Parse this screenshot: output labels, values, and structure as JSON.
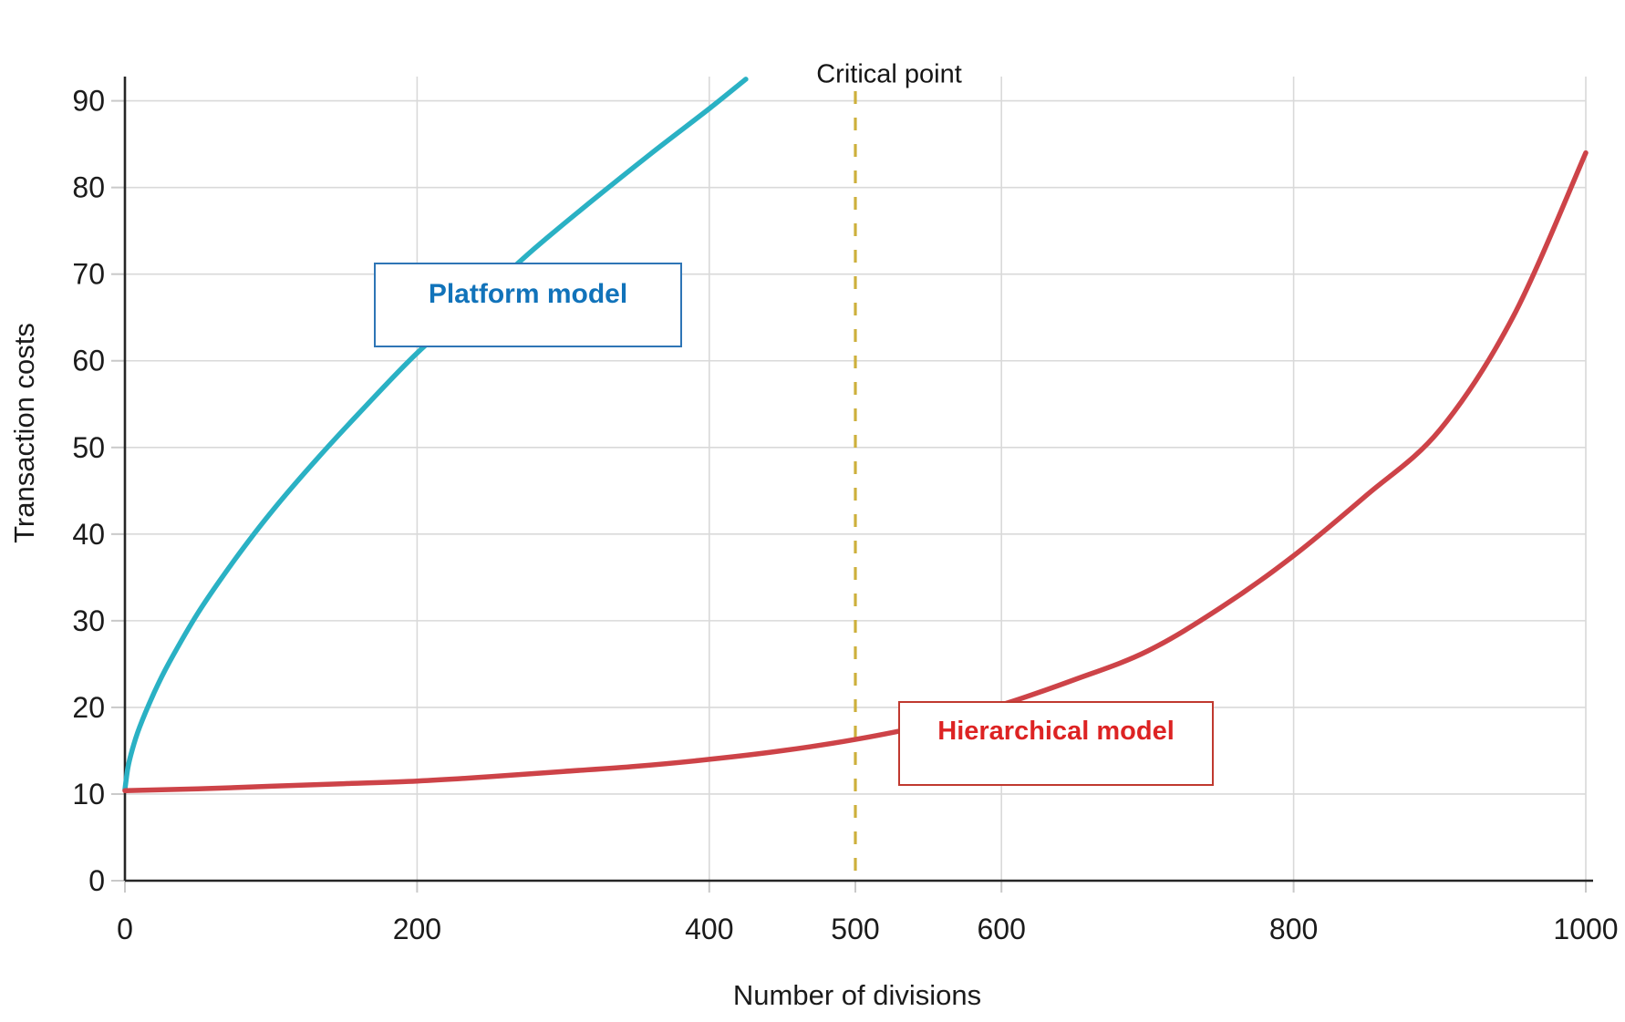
{
  "chart_data": {
    "type": "line",
    "title": "",
    "xlabel": "Number of divisions",
    "ylabel": "Transaction costs",
    "xlim": [
      0,
      1000
    ],
    "ylim": [
      0,
      92.8
    ],
    "grid": "on",
    "x_ticks": [
      0,
      200,
      400,
      500,
      600,
      800,
      1000
    ],
    "y_ticks": [
      0,
      10,
      20,
      30,
      40,
      50,
      60,
      70,
      80,
      90
    ],
    "x_gridlines": [
      200,
      400,
      600,
      800,
      1000
    ],
    "series": [
      {
        "name": "Platform model",
        "color": "#2ab1c4",
        "points": [
          [
            0,
            10.5
          ],
          [
            2,
            13.0
          ],
          [
            5,
            15.1
          ],
          [
            10,
            17.7
          ],
          [
            20,
            21.7
          ],
          [
            30,
            25.1
          ],
          [
            50,
            30.9
          ],
          [
            75,
            37.0
          ],
          [
            100,
            42.5
          ],
          [
            130,
            48.4
          ],
          [
            160,
            53.9
          ],
          [
            200,
            60.9
          ],
          [
            240,
            66.8
          ],
          [
            280,
            72.9
          ],
          [
            320,
            78.5
          ],
          [
            360,
            83.9
          ],
          [
            400,
            89.1
          ],
          [
            425,
            92.5
          ]
        ]
      },
      {
        "name": "Hierarchical model",
        "color": "#cd4348",
        "points": [
          [
            0,
            10.4
          ],
          [
            50,
            10.6
          ],
          [
            100,
            10.9
          ],
          [
            150,
            11.2
          ],
          [
            200,
            11.5
          ],
          [
            250,
            12.0
          ],
          [
            300,
            12.6
          ],
          [
            350,
            13.2
          ],
          [
            400,
            14.0
          ],
          [
            450,
            15.0
          ],
          [
            500,
            16.3
          ],
          [
            550,
            18.0
          ],
          [
            600,
            20.3
          ],
          [
            650,
            23.2
          ],
          [
            700,
            26.5
          ],
          [
            750,
            31.5
          ],
          [
            800,
            37.5
          ],
          [
            850,
            44.5
          ],
          [
            900,
            52.0
          ],
          [
            950,
            65.0
          ],
          [
            1000,
            84.0
          ]
        ]
      }
    ],
    "annotations": {
      "critical_point": {
        "label": "Critical point",
        "x": 500,
        "line_color": "#cdb03c"
      },
      "series_labels": [
        {
          "text": "Platform model",
          "text_color": "#1173ba",
          "border_color": "#2e75b6"
        },
        {
          "text": "Hierarchical model",
          "text_color": "#dd2323",
          "border_color": "#c0392f"
        }
      ]
    },
    "style": {
      "grid_color": "#d9d9d9",
      "axis_color": "#262626",
      "tick_label_color": "#1b1b1b",
      "background": "#ffffff"
    }
  }
}
